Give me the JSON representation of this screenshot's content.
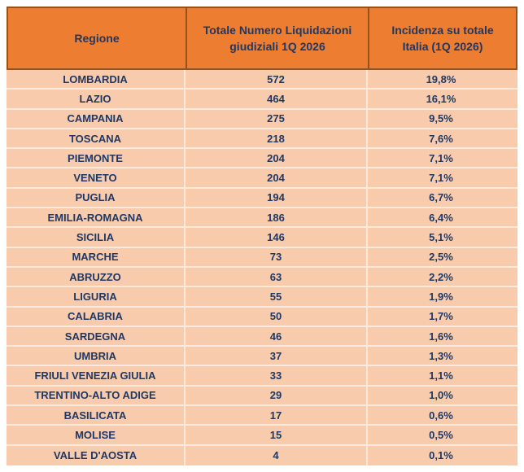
{
  "colors": {
    "header_bg": "#ED7D31",
    "header_border": "#99511A",
    "row_bg": "#F8CBAD",
    "row_divider": "#FBEADC",
    "text": "#1F3864",
    "page_bg": "#FFFFFF"
  },
  "chart_data": {
    "type": "table",
    "columns": [
      "Regione",
      "Totale Numero Liquidazioni giudiziali 1Q 2026",
      "Incidenza su totale Italia (1Q 2026)"
    ],
    "rows": [
      {
        "region": "LOMBARDIA",
        "total": 572,
        "incidence_pct": "19,8%"
      },
      {
        "region": "LAZIO",
        "total": 464,
        "incidence_pct": "16,1%"
      },
      {
        "region": "CAMPANIA",
        "total": 275,
        "incidence_pct": "9,5%"
      },
      {
        "region": "TOSCANA",
        "total": 218,
        "incidence_pct": "7,6%"
      },
      {
        "region": "PIEMONTE",
        "total": 204,
        "incidence_pct": "7,1%"
      },
      {
        "region": "VENETO",
        "total": 204,
        "incidence_pct": "7,1%"
      },
      {
        "region": "PUGLIA",
        "total": 194,
        "incidence_pct": "6,7%"
      },
      {
        "region": "EMILIA-ROMAGNA",
        "total": 186,
        "incidence_pct": "6,4%"
      },
      {
        "region": "SICILIA",
        "total": 146,
        "incidence_pct": "5,1%"
      },
      {
        "region": "MARCHE",
        "total": 73,
        "incidence_pct": "2,5%"
      },
      {
        "region": "ABRUZZO",
        "total": 63,
        "incidence_pct": "2,2%"
      },
      {
        "region": "LIGURIA",
        "total": 55,
        "incidence_pct": "1,9%"
      },
      {
        "region": "CALABRIA",
        "total": 50,
        "incidence_pct": "1,7%"
      },
      {
        "region": "SARDEGNA",
        "total": 46,
        "incidence_pct": "1,6%"
      },
      {
        "region": "UMBRIA",
        "total": 37,
        "incidence_pct": "1,3%"
      },
      {
        "region": "FRIULI VENEZIA GIULIA",
        "total": 33,
        "incidence_pct": "1,1%"
      },
      {
        "region": "TRENTINO-ALTO ADIGE",
        "total": 29,
        "incidence_pct": "1,0%"
      },
      {
        "region": "BASILICATA",
        "total": 17,
        "incidence_pct": "0,6%"
      },
      {
        "region": "MOLISE",
        "total": 15,
        "incidence_pct": "0,5%"
      },
      {
        "region": "VALLE D'AOSTA",
        "total": 4,
        "incidence_pct": "0,1%"
      }
    ]
  }
}
